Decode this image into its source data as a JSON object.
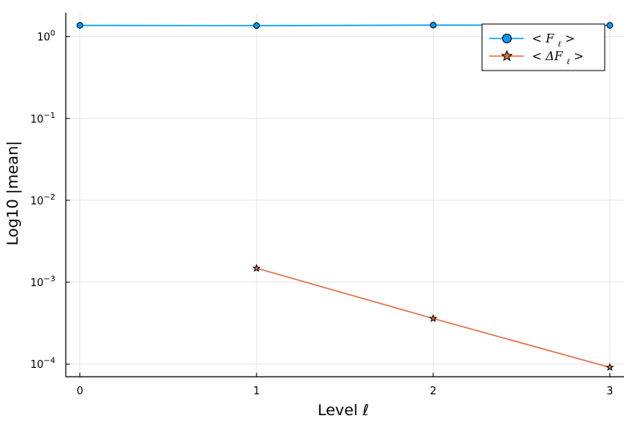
{
  "chart_data": {
    "type": "line",
    "xlabel": "Level ℓ",
    "ylabel": "Log10 |mean|",
    "x": [
      0,
      1,
      2,
      3
    ],
    "x_ticks": [
      "0",
      "1",
      "2",
      "3"
    ],
    "y_scale": "log10",
    "y_ticks": [
      {
        "value": 1,
        "base": "10",
        "exp": "0"
      },
      {
        "value": 0.1,
        "base": "10",
        "exp": "−1"
      },
      {
        "value": 0.01,
        "base": "10",
        "exp": "−2"
      },
      {
        "value": 0.001,
        "base": "10",
        "exp": "−3"
      },
      {
        "value": 0.0001,
        "base": "10",
        "exp": "−4"
      }
    ],
    "xlim": [
      -0.08,
      3.08
    ],
    "ylim": [
      7e-05,
      1.95
    ],
    "grid": true,
    "legend_position": "top-right",
    "series": [
      {
        "name": "< F_ℓ >",
        "legend_main": "< F",
        "legend_sub": "ℓ",
        "legend_end": ">",
        "color": "#009AFA",
        "marker": "circle",
        "x": [
          0,
          1,
          2,
          3
        ],
        "values": [
          1.37,
          1.36,
          1.38,
          1.37
        ]
      },
      {
        "name": "< ΔF_ℓ >",
        "legend_main": "< ΔF",
        "legend_sub": "ℓ",
        "legend_end": ">",
        "color": "#E36F47",
        "marker": "star",
        "x": [
          1,
          2,
          3
        ],
        "values": [
          0.00148,
          0.00036,
          9.1e-05
        ]
      }
    ]
  }
}
